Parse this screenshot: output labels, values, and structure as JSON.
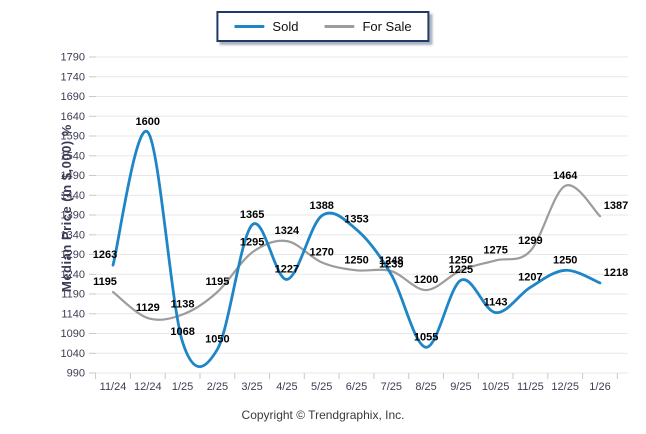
{
  "legend": {
    "items": [
      {
        "label": "Sold"
      },
      {
        "label": "For Sale"
      }
    ]
  },
  "footer": {
    "copyright": "Copyright © Trendgraphix, Inc."
  },
  "chart_data": {
    "type": "line",
    "title": "",
    "xlabel": "",
    "ylabel": "Median Price (in $,000) %",
    "categories": [
      "11/24",
      "12/24",
      "1/25",
      "2/25",
      "3/25",
      "4/25",
      "5/25",
      "6/25",
      "7/25",
      "8/25",
      "9/25",
      "10/25",
      "11/25",
      "12/25",
      "1/26"
    ],
    "series": [
      {
        "name": "Sold",
        "color": "#1E86C7",
        "values": [
          1263,
          1600,
          1068,
          1050,
          1365,
          1227,
          1388,
          1353,
          1239,
          1055,
          1225,
          1143,
          1207,
          1250,
          1218
        ]
      },
      {
        "name": "For Sale",
        "color": "#9C9C9C",
        "values": [
          1195,
          1129,
          1138,
          1195,
          1295,
          1324,
          1270,
          1250,
          1248,
          1200,
          1250,
          1275,
          1299,
          1464,
          1387
        ]
      }
    ],
    "ylim": [
      990,
      1790
    ],
    "ytick_step": 50,
    "yticks": [
      990,
      1040,
      1090,
      1140,
      1190,
      1240,
      1290,
      1340,
      1390,
      1440,
      1490,
      1540,
      1590,
      1640,
      1690,
      1740,
      1790
    ],
    "grid": true,
    "smooth": true,
    "legend_position": "top-center",
    "data_labels": true
  },
  "style": {
    "grid_color": "#E7E7E7",
    "tick_color": "#C9C9C9",
    "tick_text_color": "#3D3D55",
    "axis_title_color": "#3A3A55",
    "data_label_color": "#000000",
    "legend_border_color": "#1F3A68"
  }
}
